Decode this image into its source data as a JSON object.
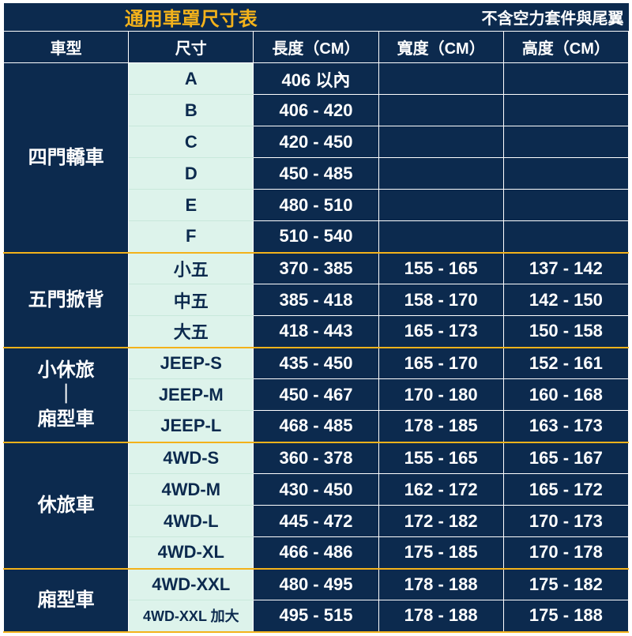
{
  "title": "通用車罩尺寸表",
  "note": "不含空力套件與尾翼",
  "columns": [
    "車型",
    "尺寸",
    "長度（CM）",
    "寬度（CM）",
    "高度（CM）"
  ],
  "groups": [
    {
      "category": "四門轎車",
      "rows": [
        {
          "size": "A",
          "length": "406 以內",
          "width": "",
          "height": ""
        },
        {
          "size": "B",
          "length": "406 - 420",
          "width": "",
          "height": ""
        },
        {
          "size": "C",
          "length": "420 - 450",
          "width": "",
          "height": ""
        },
        {
          "size": "D",
          "length": "450 - 485",
          "width": "",
          "height": ""
        },
        {
          "size": "E",
          "length": "480 - 510",
          "width": "",
          "height": ""
        },
        {
          "size": "F",
          "length": "510 - 540",
          "width": "",
          "height": ""
        }
      ]
    },
    {
      "category": "五門掀背",
      "rows": [
        {
          "size": "小五",
          "length": "370 - 385",
          "width": "155 - 165",
          "height": "137 - 142"
        },
        {
          "size": "中五",
          "length": "385 - 418",
          "width": "158 - 170",
          "height": "142 - 150"
        },
        {
          "size": "大五",
          "length": "418 - 443",
          "width": "165 - 173",
          "height": "150 - 158"
        }
      ]
    },
    {
      "category": "小休旅\n｜\n廂型車",
      "rows": [
        {
          "size": "JEEP-S",
          "length": "435 - 450",
          "width": "165 - 170",
          "height": "152 - 161"
        },
        {
          "size": "JEEP-M",
          "length": "450 - 467",
          "width": "170 - 180",
          "height": "160 - 168"
        },
        {
          "size": "JEEP-L",
          "length": "468 - 485",
          "width": "178 - 185",
          "height": "163 - 173"
        }
      ]
    },
    {
      "category": "休旅車",
      "rows": [
        {
          "size": "4WD-S",
          "length": "360 - 378",
          "width": "155 - 165",
          "height": "165 - 167"
        },
        {
          "size": "4WD-M",
          "length": "430 - 450",
          "width": "162 - 172",
          "height": "165 - 172"
        },
        {
          "size": "4WD-L",
          "length": "445 - 472",
          "width": "172 - 182",
          "height": "170 - 173"
        },
        {
          "size": "4WD-XL",
          "length": "466 - 486",
          "width": "175 - 185",
          "height": "170 - 178"
        }
      ]
    },
    {
      "category": "廂型車",
      "rows": [
        {
          "size": "4WD-XXL",
          "length": "480 - 495",
          "width": "178 - 188",
          "height": "175 - 182"
        },
        {
          "size": "4WD-XXL 加大",
          "length": "495 - 515",
          "width": "178 - 188",
          "height": "175 - 188"
        }
      ]
    }
  ],
  "colors": {
    "bg_dark": "#0c2a4e",
    "bg_light": "#ddf3eb",
    "accent": "#f3b21b",
    "text_light": "#ffffff"
  }
}
